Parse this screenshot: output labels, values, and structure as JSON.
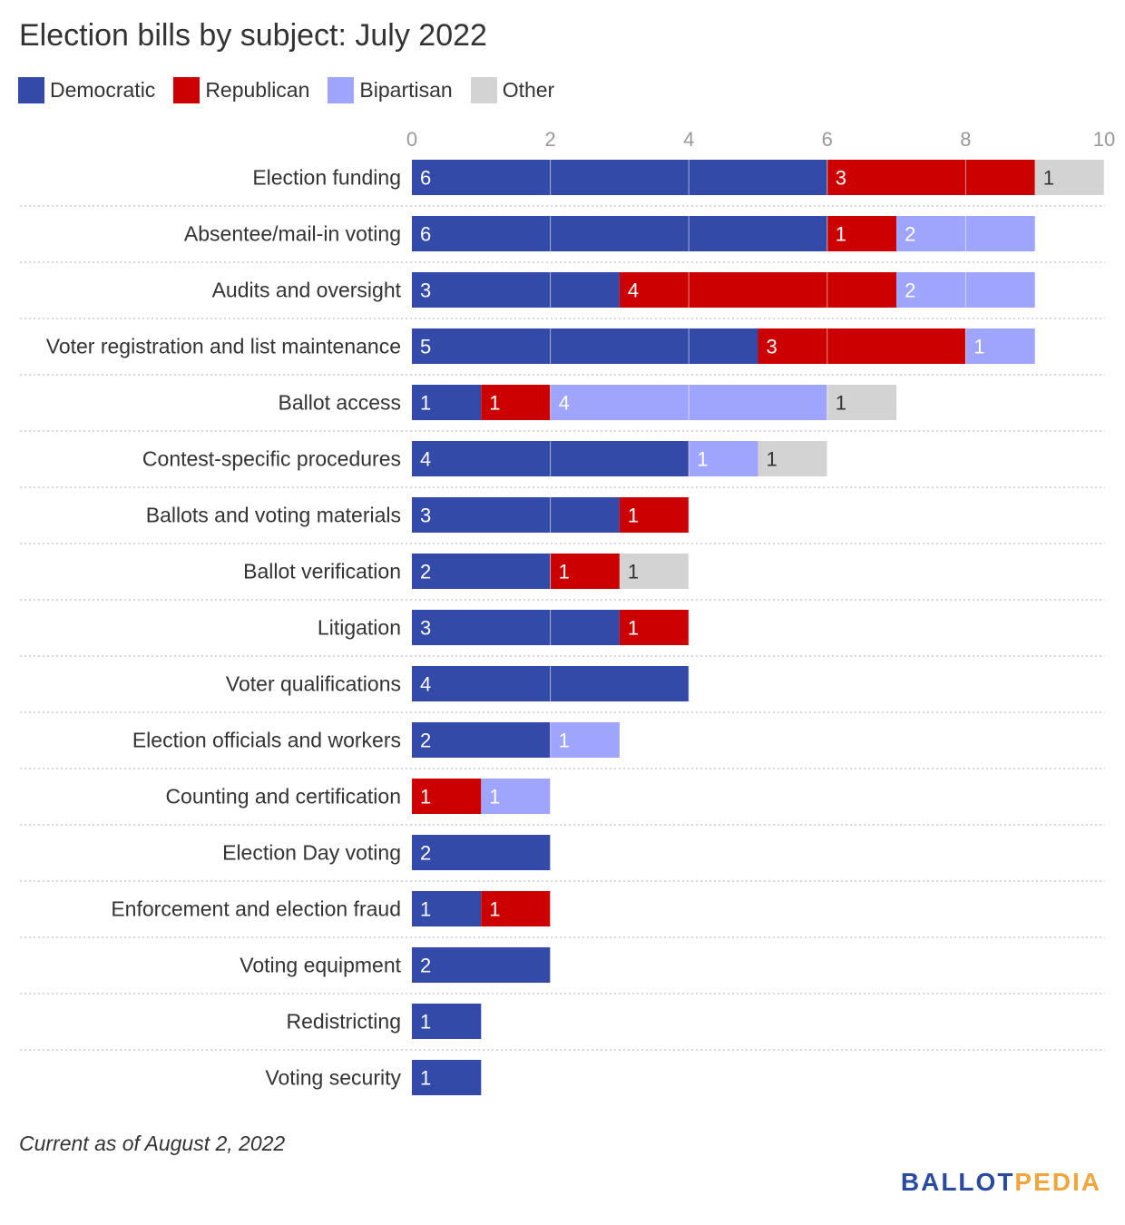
{
  "title": "Election bills by subject: July 2022",
  "footnote": "Current as of August 2, 2022",
  "logo": {
    "part1": "BALLOT",
    "part2": "PEDIA"
  },
  "colors": {
    "Democratic": "#334aa8",
    "Republican": "#cc0000",
    "Bipartisan": "#9fa4fc",
    "Other": "#d3d3d3",
    "grid": "#ffffff",
    "axis_tick_text": "#999999",
    "separator": "#cccccc"
  },
  "legend": [
    {
      "name": "Democratic",
      "color": "#334aa8"
    },
    {
      "name": "Republican",
      "color": "#cc0000"
    },
    {
      "name": "Bipartisan",
      "color": "#9fa4fc"
    },
    {
      "name": "Other",
      "color": "#d3d3d3"
    }
  ],
  "chart_data": {
    "type": "bar",
    "orientation": "horizontal",
    "stacked": true,
    "title": "Election bills by subject: July 2022",
    "categories": [
      "Election funding",
      "Absentee/mail-in voting",
      "Audits and oversight",
      "Voter registration and list maintenance",
      "Ballot access",
      "Contest-specific procedures",
      "Ballots and voting materials",
      "Ballot verification",
      "Litigation",
      "Voter qualifications",
      "Election officials and workers",
      "Counting and certification",
      "Election Day voting",
      "Enforcement and election fraud",
      "Voting equipment",
      "Redistricting",
      "Voting security"
    ],
    "series": [
      {
        "name": "Democratic",
        "values": [
          6,
          6,
          3,
          5,
          1,
          4,
          3,
          2,
          3,
          4,
          2,
          0,
          2,
          1,
          2,
          1,
          1
        ]
      },
      {
        "name": "Republican",
        "values": [
          3,
          1,
          4,
          3,
          1,
          0,
          1,
          1,
          1,
          0,
          0,
          1,
          0,
          1,
          0,
          0,
          0
        ]
      },
      {
        "name": "Bipartisan",
        "values": [
          0,
          2,
          2,
          1,
          4,
          1,
          0,
          0,
          0,
          0,
          1,
          1,
          0,
          0,
          0,
          0,
          0
        ]
      },
      {
        "name": "Other",
        "values": [
          1,
          0,
          0,
          0,
          1,
          1,
          0,
          1,
          0,
          0,
          0,
          0,
          0,
          0,
          0,
          0,
          0
        ]
      }
    ],
    "xlim": [
      0,
      10
    ],
    "xticks": [
      0,
      2,
      4,
      6,
      8,
      10
    ],
    "grid": true,
    "legend_position": "top-left",
    "data_labels": true
  }
}
